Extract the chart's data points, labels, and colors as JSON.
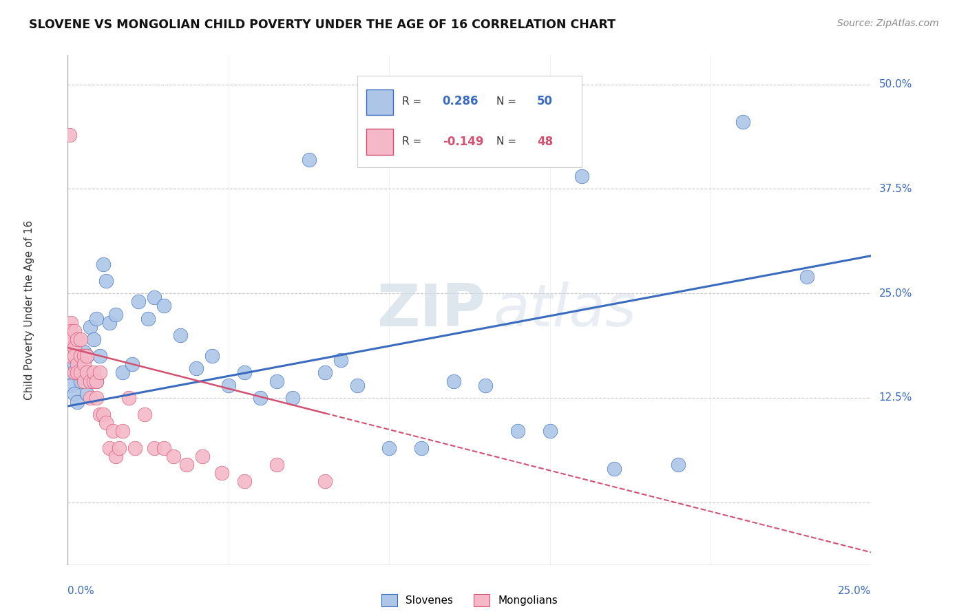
{
  "title": "SLOVENE VS MONGOLIAN CHILD POVERTY UNDER THE AGE OF 16 CORRELATION CHART",
  "source": "Source: ZipAtlas.com",
  "ylabel": "Child Poverty Under the Age of 16",
  "slovene_R": 0.286,
  "slovene_N": 50,
  "mongolian_R": -0.149,
  "mongolian_N": 48,
  "slovene_color": "#adc6e8",
  "mongolian_color": "#f5b8c8",
  "slovene_line_color": "#3a6bbf",
  "mongolian_line_color": "#d45070",
  "watermark_zip": "ZIP",
  "watermark_atlas": "atlas",
  "xmin": 0.0,
  "xmax": 0.25,
  "ymin": -0.075,
  "ymax": 0.535,
  "ytick_vals": [
    0.0,
    0.125,
    0.25,
    0.375,
    0.5
  ],
  "ytick_labels": [
    "",
    "12.5%",
    "25.0%",
    "37.5%",
    "50.0%"
  ],
  "slovene_x": [
    0.001,
    0.001,
    0.002,
    0.002,
    0.003,
    0.003,
    0.004,
    0.004,
    0.005,
    0.005,
    0.006,
    0.006,
    0.007,
    0.008,
    0.009,
    0.009,
    0.01,
    0.011,
    0.012,
    0.013,
    0.015,
    0.017,
    0.02,
    0.022,
    0.025,
    0.027,
    0.03,
    0.035,
    0.04,
    0.045,
    0.05,
    0.055,
    0.06,
    0.065,
    0.07,
    0.075,
    0.08,
    0.085,
    0.09,
    0.1,
    0.11,
    0.12,
    0.13,
    0.14,
    0.15,
    0.16,
    0.17,
    0.19,
    0.21,
    0.23
  ],
  "slovene_y": [
    0.155,
    0.14,
    0.165,
    0.13,
    0.17,
    0.12,
    0.16,
    0.145,
    0.18,
    0.15,
    0.175,
    0.13,
    0.21,
    0.195,
    0.22,
    0.145,
    0.175,
    0.285,
    0.265,
    0.215,
    0.225,
    0.155,
    0.165,
    0.24,
    0.22,
    0.245,
    0.235,
    0.2,
    0.16,
    0.175,
    0.14,
    0.155,
    0.125,
    0.145,
    0.125,
    0.41,
    0.155,
    0.17,
    0.14,
    0.065,
    0.065,
    0.145,
    0.14,
    0.085,
    0.085,
    0.39,
    0.04,
    0.045,
    0.455,
    0.27
  ],
  "mongolian_x": [
    0.0005,
    0.0005,
    0.001,
    0.001,
    0.001,
    0.001,
    0.002,
    0.002,
    0.002,
    0.002,
    0.003,
    0.003,
    0.003,
    0.004,
    0.004,
    0.004,
    0.005,
    0.005,
    0.005,
    0.006,
    0.006,
    0.007,
    0.007,
    0.008,
    0.008,
    0.009,
    0.009,
    0.01,
    0.01,
    0.011,
    0.012,
    0.013,
    0.014,
    0.015,
    0.016,
    0.017,
    0.019,
    0.021,
    0.024,
    0.027,
    0.03,
    0.033,
    0.037,
    0.042,
    0.048,
    0.055,
    0.065,
    0.08
  ],
  "mongolian_y": [
    0.44,
    0.195,
    0.215,
    0.205,
    0.195,
    0.175,
    0.205,
    0.185,
    0.175,
    0.155,
    0.195,
    0.165,
    0.155,
    0.175,
    0.195,
    0.155,
    0.175,
    0.165,
    0.145,
    0.155,
    0.175,
    0.145,
    0.125,
    0.145,
    0.155,
    0.125,
    0.145,
    0.155,
    0.105,
    0.105,
    0.095,
    0.065,
    0.085,
    0.055,
    0.065,
    0.085,
    0.125,
    0.065,
    0.105,
    0.065,
    0.065,
    0.055,
    0.045,
    0.055,
    0.035,
    0.025,
    0.045,
    0.025
  ],
  "slovene_line_x0": 0.0,
  "slovene_line_y0": 0.115,
  "slovene_line_x1": 0.25,
  "slovene_line_y1": 0.295,
  "mongolian_line_x0": 0.0,
  "mongolian_line_y0": 0.185,
  "mongolian_line_x1": 0.25,
  "mongolian_line_y1": -0.06
}
